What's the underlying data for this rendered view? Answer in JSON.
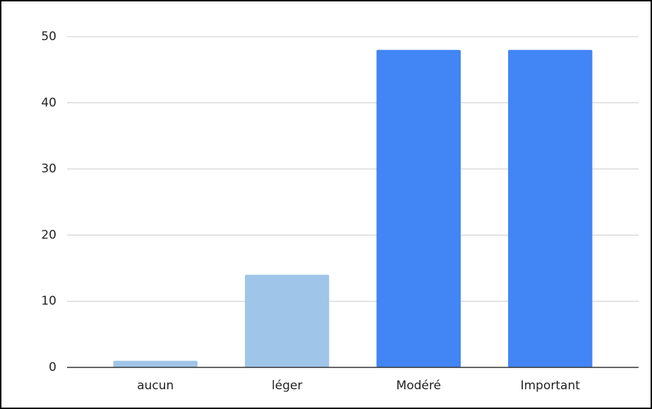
{
  "chart_data": {
    "type": "bar",
    "categories": [
      "aucun",
      "léger",
      "Modéré",
      "Important"
    ],
    "values": [
      1,
      14,
      48,
      48
    ],
    "colors": [
      "#9fc5e8",
      "#9fc5e8",
      "#4285f4",
      "#4285f4"
    ],
    "ylim": [
      0,
      50
    ],
    "yticks": [
      0,
      10,
      20,
      30,
      40,
      50
    ],
    "grid": true
  }
}
